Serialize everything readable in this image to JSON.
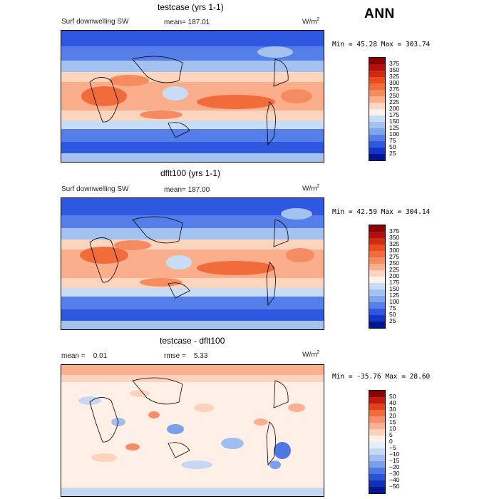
{
  "season_label": "ANN",
  "panels": [
    {
      "id": "testcase",
      "title": "testcase (yrs 1-1)",
      "variable": "Surf downwelling SW",
      "mean_label": "mean= 187.01",
      "rmse_label": "",
      "units": "W/m",
      "units_exp": "2",
      "minmax_label": "Min =  45.28 Max = 303.74",
      "scale": "abs",
      "colorbar_labels": [
        "375",
        "350",
        "325",
        "300",
        "275",
        "250",
        "225",
        "200",
        "175",
        "150",
        "125",
        "100",
        "75",
        "50",
        "25"
      ]
    },
    {
      "id": "dflt100",
      "title": "dflt100 (yrs 1-1)",
      "variable": "Surf downwelling SW",
      "mean_label": "mean= 187.00",
      "rmse_label": "",
      "units": "W/m",
      "units_exp": "2",
      "minmax_label": "Min =  42.59 Max = 304.14",
      "scale": "abs",
      "colorbar_labels": [
        "375",
        "350",
        "325",
        "300",
        "275",
        "250",
        "225",
        "200",
        "175",
        "150",
        "125",
        "100",
        "75",
        "50",
        "25"
      ]
    },
    {
      "id": "diff",
      "title": "testcase - dflt100",
      "variable": "",
      "mean_label": "mean =    0.01",
      "rmse_label": "rmse =    5.33",
      "units": "W/m",
      "units_exp": "2",
      "minmax_label": "Min = -35.76 Max =  28.60",
      "scale": "diff",
      "colorbar_labels": [
        "50",
        "40",
        "30",
        "20",
        "15",
        "10",
        "5",
        "0",
        "−5",
        "−10",
        "−15",
        "−20",
        "−30",
        "−40",
        "−50"
      ]
    }
  ],
  "colors": {
    "abs_scale": [
      "#8a0000",
      "#b01010",
      "#d02a10",
      "#e84d20",
      "#f26b3a",
      "#f78b60",
      "#fbae8c",
      "#fcd5bf",
      "#fdf2ea",
      "#c8dcf6",
      "#a4c2f0",
      "#7ea6ec",
      "#557ee8",
      "#2f58e0",
      "#1234c8",
      "#001690"
    ],
    "diff_scale": [
      "#8a0000",
      "#c01a0a",
      "#e04020",
      "#f06a3a",
      "#f78d68",
      "#fbb190",
      "#fdd3be",
      "#fef0e6",
      "#e6eefb",
      "#c6d8f4",
      "#a2bdf0",
      "#7aa0ea",
      "#5078e2",
      "#2a52d8",
      "#1030b8",
      "#001690"
    ]
  }
}
